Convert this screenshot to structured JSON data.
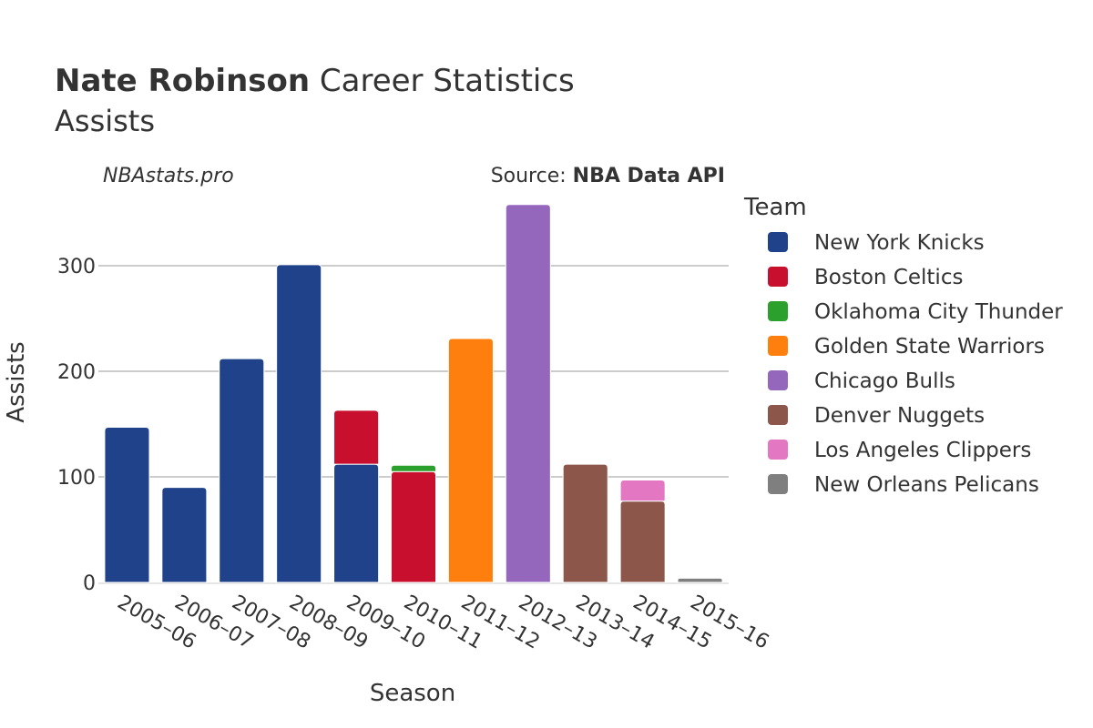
{
  "chart_data": {
    "type": "bar",
    "stacked": true,
    "title_bold": "Nate Robinson",
    "title_rest": " Career Statistics",
    "subtitle": "Assists",
    "watermark": "NBAstats.pro",
    "source_prefix": "Source: ",
    "source_name": "NBA Data API",
    "xlabel": "Season",
    "ylabel": "Assists",
    "ylim": [
      0,
      375
    ],
    "yticks": [
      0,
      100,
      200,
      300
    ],
    "ytick_labels": [
      "0",
      "100",
      "200",
      "300"
    ],
    "grid": true,
    "legend_title": "Team",
    "legend_position": "right",
    "categories": [
      "2005–06",
      "2006–07",
      "2007–08",
      "2008–09",
      "2009–10",
      "2010–11",
      "2011–12",
      "2012–13",
      "2013–14",
      "2014–15",
      "2015–16"
    ],
    "series": [
      {
        "name": "New York Knicks",
        "color": "#1f428a",
        "values": [
          147,
          90,
          212,
          301,
          112,
          0,
          0,
          0,
          0,
          0,
          0
        ]
      },
      {
        "name": "Boston Celtics",
        "color": "#c8102e",
        "values": [
          0,
          0,
          0,
          0,
          51,
          105,
          0,
          0,
          0,
          0,
          0
        ]
      },
      {
        "name": "Oklahoma City Thunder",
        "color": "#2ca02c",
        "values": [
          0,
          0,
          0,
          0,
          0,
          6,
          0,
          0,
          0,
          0,
          0
        ]
      },
      {
        "name": "Golden State Warriors",
        "color": "#ff7f0e",
        "values": [
          0,
          0,
          0,
          0,
          0,
          0,
          231,
          0,
          0,
          0,
          0
        ]
      },
      {
        "name": "Chicago Bulls",
        "color": "#9467bd",
        "values": [
          0,
          0,
          0,
          0,
          0,
          0,
          0,
          358,
          0,
          0,
          0
        ]
      },
      {
        "name": "Denver Nuggets",
        "color": "#8c564b",
        "values": [
          0,
          0,
          0,
          0,
          0,
          0,
          0,
          0,
          112,
          77,
          0
        ]
      },
      {
        "name": "Los Angeles Clippers",
        "color": "#e377c2",
        "values": [
          0,
          0,
          0,
          0,
          0,
          0,
          0,
          0,
          0,
          20,
          0
        ]
      },
      {
        "name": "New Orleans Pelicans",
        "color": "#7f7f7f",
        "values": [
          0,
          0,
          0,
          0,
          0,
          0,
          0,
          0,
          0,
          0,
          4
        ]
      }
    ]
  }
}
